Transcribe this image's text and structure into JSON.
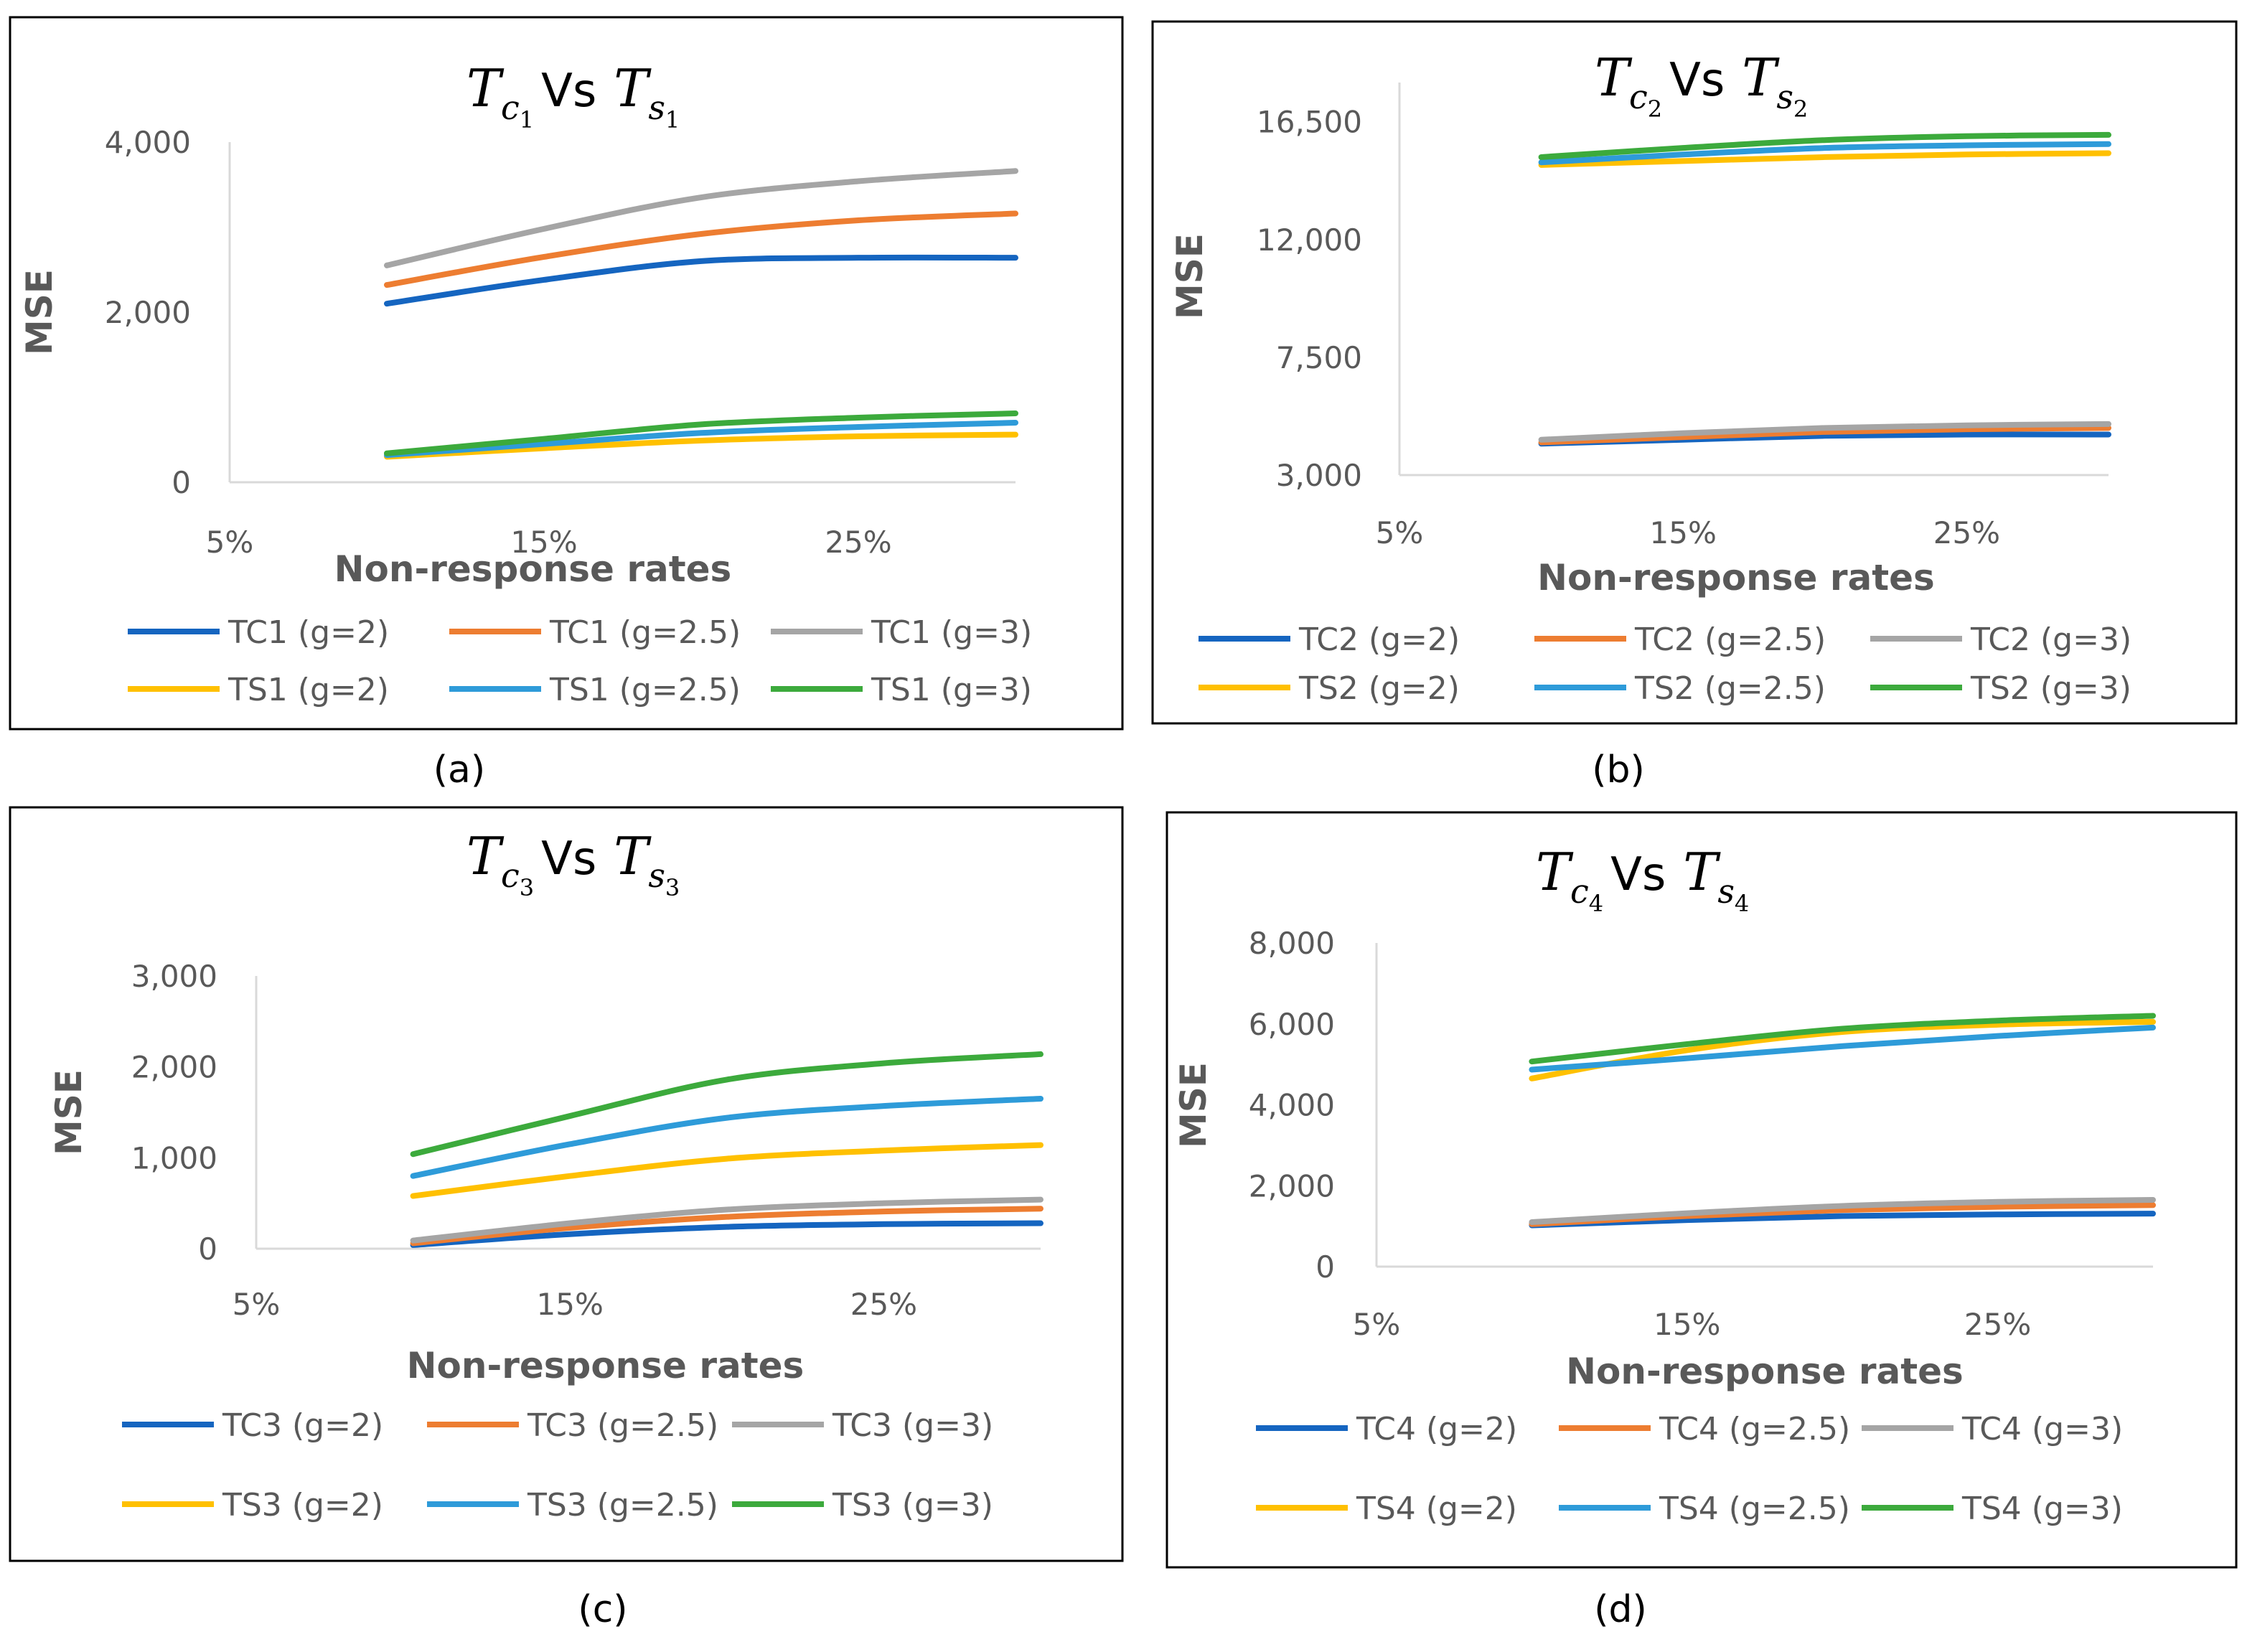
{
  "chart_data": [
    {
      "type": "line",
      "panel_label": "(a)",
      "title": {
        "t1": "T",
        "s1": "c",
        "n1": "1",
        "vs": "Vs",
        "t2": "T",
        "s2": "s",
        "n2": "1"
      },
      "xlabel": "Non-response rates",
      "ylabel": "MSE",
      "x_ticks": [
        "5%",
        "15%",
        "25%"
      ],
      "y_ticks": [
        "0",
        "2,000",
        "4,000"
      ],
      "y_tick_values": [
        0,
        2000,
        4000
      ],
      "xlim": [
        5,
        30
      ],
      "ylim": [
        0,
        4000
      ],
      "x": [
        10,
        15,
        20,
        25,
        30
      ],
      "series": [
        {
          "name": "TC1 (g=2)",
          "color": "#1565C0",
          "values": [
            2100,
            2380,
            2600,
            2640,
            2640
          ]
        },
        {
          "name": "TC1 (g=2.5)",
          "color": "#ED7D31",
          "values": [
            2320,
            2650,
            2920,
            3080,
            3160
          ]
        },
        {
          "name": "TC1 (g=3)",
          "color": "#A5A5A5",
          "values": [
            2550,
            2980,
            3350,
            3540,
            3660
          ]
        },
        {
          "name": "TS1 (g=2)",
          "color": "#FFC000",
          "values": [
            300,
            400,
            490,
            540,
            560
          ]
        },
        {
          "name": "TS1 (g=2.5)",
          "color": "#2E9BD9",
          "values": [
            320,
            450,
            580,
            650,
            700
          ]
        },
        {
          "name": "TS1 (g=3)",
          "color": "#3CAA3C",
          "values": [
            340,
            510,
            680,
            760,
            810
          ]
        }
      ]
    },
    {
      "type": "line",
      "panel_label": "(b)",
      "title": {
        "t1": "T",
        "s1": "c",
        "n1": "2",
        "vs": "Vs",
        "t2": "T",
        "s2": "s",
        "n2": "2"
      },
      "xlabel": "Non-response rates",
      "ylabel": "MSE",
      "x_ticks": [
        "5%",
        "15%",
        "25%"
      ],
      "y_ticks": [
        "3,000",
        "7,500",
        "12,000",
        "16,500"
      ],
      "y_tick_values": [
        3000,
        7500,
        12000,
        16500
      ],
      "xlim": [
        5,
        30
      ],
      "ylim": [
        3000,
        18000
      ],
      "x": [
        10,
        15,
        20,
        25,
        30
      ],
      "series": [
        {
          "name": "TC2 (g=2)",
          "color": "#1565C0",
          "values": [
            4200,
            4350,
            4500,
            4550,
            4550
          ]
        },
        {
          "name": "TC2 (g=2.5)",
          "color": "#ED7D31",
          "values": [
            4250,
            4450,
            4650,
            4750,
            4800
          ]
        },
        {
          "name": "TC2 (g=3)",
          "color": "#A5A5A5",
          "values": [
            4350,
            4600,
            4800,
            4900,
            4950
          ]
        },
        {
          "name": "TS2 (g=2)",
          "color": "#FFC000",
          "values": [
            14850,
            15000,
            15150,
            15250,
            15300
          ]
        },
        {
          "name": "TS2 (g=2.5)",
          "color": "#2E9BD9",
          "values": [
            14950,
            15250,
            15500,
            15600,
            15650
          ]
        },
        {
          "name": "TS2 (g=3)",
          "color": "#3CAA3C",
          "values": [
            15150,
            15500,
            15800,
            15950,
            16000
          ]
        }
      ]
    },
    {
      "type": "line",
      "panel_label": "(c)",
      "title": {
        "t1": "T",
        "s1": "c",
        "n1": "3",
        "vs": "Vs",
        "t2": "T",
        "s2": "s",
        "n2": "3"
      },
      "xlabel": "Non-response rates",
      "ylabel": "MSE",
      "x_ticks": [
        "5%",
        "15%",
        "25%"
      ],
      "y_ticks": [
        "0",
        "1,000",
        "2,000",
        "3,000"
      ],
      "y_tick_values": [
        0,
        1000,
        2000,
        3000
      ],
      "xlim": [
        5,
        30
      ],
      "ylim": [
        0,
        3000
      ],
      "x": [
        10,
        15,
        20,
        25,
        30
      ],
      "series": [
        {
          "name": "TC3 (g=2)",
          "color": "#1565C0",
          "values": [
            40,
            160,
            240,
            270,
            280
          ]
        },
        {
          "name": "TC3 (g=2.5)",
          "color": "#ED7D31",
          "values": [
            60,
            230,
            350,
            410,
            440
          ]
        },
        {
          "name": "TC3 (g=3)",
          "color": "#A5A5A5",
          "values": [
            90,
            280,
            430,
            500,
            540
          ]
        },
        {
          "name": "TS3 (g=2)",
          "color": "#FFC000",
          "values": [
            580,
            800,
            990,
            1080,
            1140
          ]
        },
        {
          "name": "TS3 (g=2.5)",
          "color": "#2E9BD9",
          "values": [
            800,
            1150,
            1440,
            1570,
            1650
          ]
        },
        {
          "name": "TS3 (g=3)",
          "color": "#3CAA3C",
          "values": [
            1040,
            1460,
            1860,
            2040,
            2140
          ]
        }
      ]
    },
    {
      "type": "line",
      "panel_label": "(d)",
      "title": {
        "t1": "T",
        "s1": "c",
        "n1": "4",
        "vs": "Vs",
        "t2": "T",
        "s2": "s",
        "n2": "4"
      },
      "xlabel": "Non-response rates",
      "ylabel": "MSE",
      "x_ticks": [
        "5%",
        "15%",
        "25%"
      ],
      "y_ticks": [
        "0",
        "2,000",
        "4,000",
        "6,000",
        "8,000"
      ],
      "y_tick_values": [
        0,
        2000,
        4000,
        6000,
        8000
      ],
      "xlim": [
        5,
        30
      ],
      "ylim": [
        0,
        8000
      ],
      "x": [
        10,
        15,
        20,
        25,
        30
      ],
      "series": [
        {
          "name": "TC4 (g=2)",
          "color": "#1565C0",
          "values": [
            1020,
            1150,
            1250,
            1290,
            1310
          ]
        },
        {
          "name": "TC4 (g=2.5)",
          "color": "#ED7D31",
          "values": [
            1050,
            1250,
            1400,
            1480,
            1520
          ]
        },
        {
          "name": "TC4 (g=3)",
          "color": "#A5A5A5",
          "values": [
            1100,
            1320,
            1500,
            1600,
            1650
          ]
        },
        {
          "name": "TS4 (g=2)",
          "color": "#FFC000",
          "values": [
            4650,
            5350,
            5800,
            5980,
            6050
          ]
        },
        {
          "name": "TS4 (g=2.5)",
          "color": "#2E9BD9",
          "values": [
            4870,
            5150,
            5450,
            5700,
            5910
          ]
        },
        {
          "name": "TS4 (g=3)",
          "color": "#3CAA3C",
          "values": [
            5070,
            5500,
            5880,
            6080,
            6200
          ]
        }
      ]
    }
  ]
}
